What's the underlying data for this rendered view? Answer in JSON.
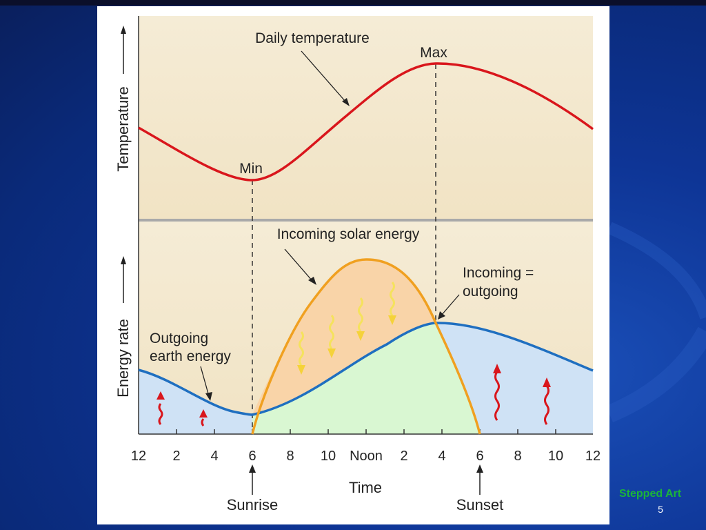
{
  "slide": {
    "caption": "Stepped Art",
    "page_number": "5"
  },
  "diagram": {
    "top_axis_label": "Temperature",
    "bottom_axis_label": "Energy rate",
    "x_axis_label": "Time",
    "x_ticks": [
      "12",
      "2",
      "4",
      "6",
      "8",
      "10",
      "Noon",
      "2",
      "4",
      "6",
      "8",
      "10",
      "12"
    ],
    "annotations": {
      "daily_temperature": "Daily temperature",
      "max": "Max",
      "min": "Min",
      "incoming_solar_energy": "Incoming solar energy",
      "incoming_equals_line1": "Incoming =",
      "incoming_equals_line2": "outgoing",
      "outgoing_line1": "Outgoing",
      "outgoing_line2": "earth energy",
      "sunrise": "Sunrise",
      "sunset": "Sunset"
    },
    "colors": {
      "temperature_curve": "#d9161c",
      "solar_curve": "#f0a020",
      "earth_curve": "#1f6fc0",
      "panel_bg": "#f5ecd6",
      "solar_fill": "#f9d4a8",
      "surplus_fill": "#d9f7d2",
      "deficit_fill": "#cfe2f5",
      "divider": "#a9a9a9"
    }
  }
}
